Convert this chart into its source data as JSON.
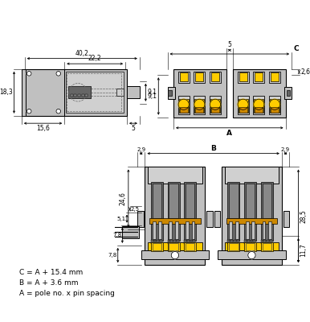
{
  "bg_color": "#ffffff",
  "line_color": "#000000",
  "gray_fill": "#c0c0c0",
  "gray_fill2": "#d0d0d0",
  "dark_gray": "#888888",
  "darker_gray": "#666666",
  "yellow_fill": "#ffcc00",
  "orange_fill": "#cc8800",
  "formula_lines": [
    "C = A + 15.4 mm",
    "B = A + 3.6 mm",
    "A = pole no. x pin spacing"
  ]
}
